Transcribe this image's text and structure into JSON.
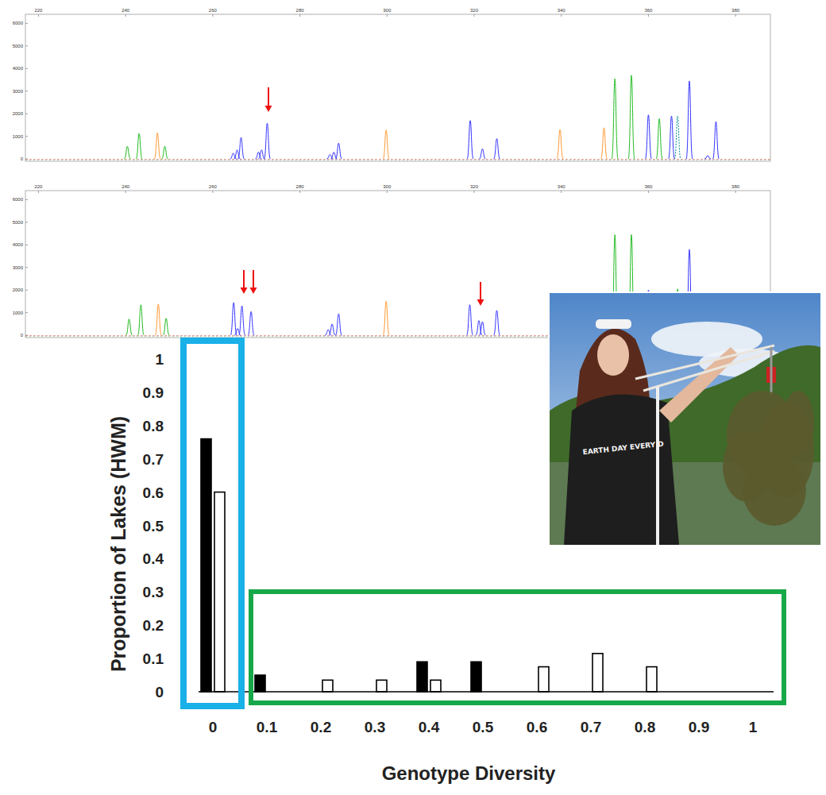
{
  "chart_data": [
    {
      "type": "electropherogram",
      "xlim": [
        217,
        388
      ],
      "xticks": [
        220,
        240,
        260,
        280,
        300,
        320,
        340,
        360,
        380
      ],
      "ylim": [
        -100,
        6400
      ],
      "yticks": [
        0,
        1000,
        2000,
        3000,
        4000,
        5000,
        6000
      ],
      "grid": false,
      "series": [
        {
          "color": "#3333ff",
          "x": [
            264.7,
            265.6,
            266.5,
            270.5,
            271.2,
            272.5,
            286.9,
            287.8,
            288.9,
            319.1,
            321.9,
            325.2,
            360.0,
            365.3,
            369.4,
            373.6,
            375.5
          ],
          "values": [
            250,
            400,
            950,
            300,
            400,
            1580,
            200,
            300,
            700,
            1700,
            450,
            900,
            1950,
            1900,
            3450,
            150,
            1650
          ]
        },
        {
          "color": "#22bb22",
          "x": [
            240.4,
            243.1,
            249.0,
            352.3,
            356.1,
            362.5
          ],
          "values": [
            560,
            1130,
            560,
            3550,
            3700,
            1780
          ]
        },
        {
          "color": "#ff9933",
          "x": [
            247.3,
            299.8,
            339.7,
            349.8
          ],
          "values": [
            1150,
            1280,
            1300,
            1380
          ]
        },
        {
          "color": "#008b8b",
          "line_style": "dashed",
          "x": [
            366.7
          ],
          "values": [
            1900
          ]
        }
      ]
    },
    {
      "type": "electropherogram",
      "xlim": [
        217,
        388
      ],
      "xticks": [
        220,
        240,
        260,
        280,
        300,
        320,
        340,
        360,
        380
      ],
      "ylim": [
        -100,
        6400
      ],
      "yticks": [
        0,
        1000,
        2000,
        3000,
        4000,
        5000,
        6000
      ],
      "grid": false,
      "series": [
        {
          "color": "#3333ff",
          "x": [
            264.8,
            265.7,
            266.7,
            268.8,
            286.5,
            287.4,
            288.9,
            319.0,
            321.1,
            321.9,
            325.2,
            360.0,
            369.4
          ],
          "values": [
            1450,
            300,
            1300,
            1050,
            250,
            500,
            950,
            1350,
            650,
            600,
            1100,
            2000,
            3800
          ]
        },
        {
          "color": "#22bb22",
          "x": [
            240.8,
            243.5,
            249.3,
            352.3,
            356.1,
            366.7
          ],
          "values": [
            720,
            1350,
            750,
            4450,
            4450,
            2050
          ]
        },
        {
          "color": "#ff9933",
          "x": [
            247.5,
            299.8
          ],
          "values": [
            1380,
            1500
          ]
        }
      ]
    },
    {
      "type": "bar",
      "x_label": "Genotype Diversity",
      "y_label": "Proportion of Lakes (HWM)",
      "categories": [
        "0",
        "0.1",
        "0.2",
        "0.3",
        "0.4",
        "0.5",
        "0.6",
        "0.7",
        "0.8",
        "0.9",
        "1"
      ],
      "ylim": [
        0,
        1
      ],
      "yticks": [
        0,
        0.1,
        0.2,
        0.3,
        0.4,
        0.5,
        0.6,
        0.7,
        0.8,
        0.9,
        1
      ],
      "grid": false,
      "series": [
        {
          "color": "#000000",
          "values": [
            0.76,
            0.05,
            0,
            0,
            0.09,
            0.09,
            0,
            0,
            0,
            0,
            0
          ]
        },
        {
          "color": "#ffffff",
          "values": [
            0.6,
            0,
            0.035,
            0.035,
            0.035,
            0,
            0.075,
            0.115,
            0.075,
            0,
            0
          ]
        }
      ]
    }
  ],
  "photo": {
    "shirt_text": "EARTH DAY EVERY D"
  }
}
